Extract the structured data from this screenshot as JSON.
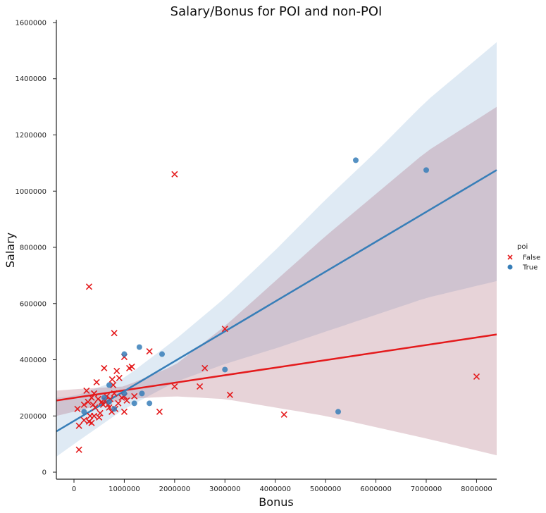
{
  "chart_data": {
    "type": "scatter",
    "title": "Salary/Bonus for POI and non-POI",
    "xlabel": "Bonus",
    "ylabel": "Salary",
    "xlim": [
      -350000,
      8400000
    ],
    "ylim": [
      -25000,
      1610000
    ],
    "x_ticks": [
      0,
      1000000,
      2000000,
      3000000,
      4000000,
      5000000,
      6000000,
      7000000,
      8000000
    ],
    "x_tick_labels": [
      "0",
      "1000000",
      "2000000",
      "3000000",
      "4000000",
      "5000000",
      "6000000",
      "7000000",
      "8000000"
    ],
    "y_ticks": [
      0,
      200000,
      400000,
      600000,
      800000,
      1000000,
      1200000,
      1400000,
      1600000
    ],
    "y_tick_labels": [
      "0",
      "200000",
      "400000",
      "600000",
      "800000",
      "1000000",
      "1200000",
      "1400000",
      "1600000"
    ],
    "grid": false,
    "legend": {
      "title": "poi",
      "placement": "right",
      "entries": [
        {
          "label": "False",
          "marker": "x",
          "color": "#e41a1c"
        },
        {
          "label": "True",
          "marker": "circle",
          "color": "#377eb8"
        }
      ]
    },
    "series": [
      {
        "name": "False",
        "marker": "x",
        "color": "#e41a1c",
        "points": [
          [
            100000,
            80000
          ],
          [
            70000,
            225000
          ],
          [
            100000,
            165000
          ],
          [
            200000,
            185000
          ],
          [
            200000,
            240000
          ],
          [
            250000,
            290000
          ],
          [
            280000,
            250000
          ],
          [
            300000,
            660000
          ],
          [
            300000,
            180000
          ],
          [
            320000,
            200000
          ],
          [
            350000,
            175000
          ],
          [
            350000,
            265000
          ],
          [
            380000,
            240000
          ],
          [
            400000,
            200000
          ],
          [
            400000,
            280000
          ],
          [
            420000,
            230000
          ],
          [
            450000,
            320000
          ],
          [
            480000,
            260000
          ],
          [
            500000,
            195000
          ],
          [
            520000,
            210000
          ],
          [
            550000,
            250000
          ],
          [
            580000,
            240000
          ],
          [
            600000,
            370000
          ],
          [
            620000,
            255000
          ],
          [
            650000,
            270000
          ],
          [
            680000,
            240000
          ],
          [
            700000,
            230000
          ],
          [
            720000,
            260000
          ],
          [
            750000,
            215000
          ],
          [
            760000,
            330000
          ],
          [
            780000,
            310000
          ],
          [
            800000,
            495000
          ],
          [
            800000,
            280000
          ],
          [
            820000,
            225000
          ],
          [
            850000,
            360000
          ],
          [
            880000,
            245000
          ],
          [
            900000,
            335000
          ],
          [
            950000,
            265000
          ],
          [
            1000000,
            410000
          ],
          [
            1000000,
            270000
          ],
          [
            1000000,
            215000
          ],
          [
            1050000,
            255000
          ],
          [
            1100000,
            370000
          ],
          [
            1150000,
            375000
          ],
          [
            1200000,
            270000
          ],
          [
            1500000,
            430000
          ],
          [
            1700000,
            215000
          ],
          [
            2000000,
            1060000
          ],
          [
            2000000,
            305000
          ],
          [
            2500000,
            305000
          ],
          [
            2600000,
            370000
          ],
          [
            3000000,
            510000
          ],
          [
            3100000,
            275000
          ],
          [
            4175000,
            205000
          ],
          [
            8000000,
            340000
          ]
        ],
        "fit_line": [
          [
            -350000,
            255000
          ],
          [
            8400000,
            490000
          ]
        ],
        "ci_upper": [
          [
            -350000,
            290000
          ],
          [
            0,
            295000
          ],
          [
            1000000,
            305000
          ],
          [
            2000000,
            380000
          ],
          [
            3000000,
            520000
          ],
          [
            4000000,
            680000
          ],
          [
            5000000,
            840000
          ],
          [
            6000000,
            990000
          ],
          [
            7000000,
            1140000
          ],
          [
            8400000,
            1300000
          ]
        ],
        "ci_lower": [
          [
            -350000,
            200000
          ],
          [
            0,
            215000
          ],
          [
            1000000,
            260000
          ],
          [
            2000000,
            270000
          ],
          [
            3000000,
            260000
          ],
          [
            4000000,
            230000
          ],
          [
            5000000,
            200000
          ],
          [
            6000000,
            160000
          ],
          [
            7000000,
            120000
          ],
          [
            8400000,
            60000
          ]
        ]
      },
      {
        "name": "True",
        "marker": "circle",
        "color": "#377eb8",
        "points": [
          [
            200000,
            215000
          ],
          [
            600000,
            265000
          ],
          [
            700000,
            310000
          ],
          [
            700000,
            250000
          ],
          [
            800000,
            225000
          ],
          [
            1000000,
            420000
          ],
          [
            1000000,
            280000
          ],
          [
            1200000,
            245000
          ],
          [
            1300000,
            445000
          ],
          [
            1350000,
            280000
          ],
          [
            1500000,
            245000
          ],
          [
            1750000,
            420000
          ],
          [
            3000000,
            365000
          ],
          [
            5250000,
            215000
          ],
          [
            5600000,
            1110000
          ],
          [
            7000000,
            1075000
          ]
        ],
        "fit_line": [
          [
            -350000,
            145000
          ],
          [
            8400000,
            1075000
          ]
        ],
        "ci_upper": [
          [
            -350000,
            265000
          ],
          [
            0,
            270000
          ],
          [
            1000000,
            335000
          ],
          [
            2000000,
            470000
          ],
          [
            3000000,
            620000
          ],
          [
            4000000,
            790000
          ],
          [
            5000000,
            970000
          ],
          [
            6000000,
            1140000
          ],
          [
            7000000,
            1320000
          ],
          [
            8400000,
            1530000
          ]
        ],
        "ci_lower": [
          [
            -350000,
            55000
          ],
          [
            0,
            100000
          ],
          [
            1000000,
            225000
          ],
          [
            2000000,
            320000
          ],
          [
            3000000,
            385000
          ],
          [
            4000000,
            440000
          ],
          [
            5000000,
            500000
          ],
          [
            6000000,
            560000
          ],
          [
            7000000,
            620000
          ],
          [
            8400000,
            680000
          ]
        ]
      }
    ]
  }
}
